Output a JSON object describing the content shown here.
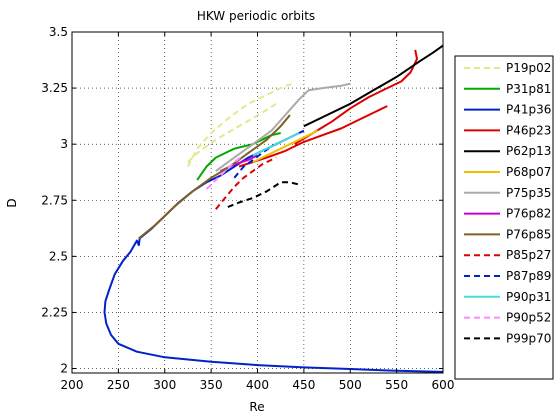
{
  "chart_data": {
    "type": "line",
    "title": "HKW periodic orbits",
    "xlabel": "Re",
    "ylabel": "D",
    "xlim": [
      200,
      600
    ],
    "ylim": [
      1.98,
      3.5
    ],
    "xticks": [
      200,
      250,
      300,
      350,
      400,
      450,
      500,
      550,
      600
    ],
    "yticks": [
      2,
      2.25,
      2.5,
      2.75,
      3,
      3.25,
      3.5
    ],
    "xtick_labels": [
      "200",
      "250",
      "300",
      "350",
      "400",
      "450",
      "500",
      "550",
      "600"
    ],
    "ytick_labels": [
      "2",
      "2.25",
      "2.5",
      "2.75",
      "3",
      "3.25",
      "3.5"
    ],
    "grid": true,
    "legend_position": "right, outside plot",
    "series": [
      {
        "name": "P19p02",
        "color": "#e6e68c",
        "dash": "dashed",
        "points": [
          [
            325,
            2.9
          ],
          [
            335,
            2.98
          ],
          [
            350,
            3.05
          ],
          [
            370,
            3.12
          ],
          [
            390,
            3.18
          ],
          [
            410,
            3.22
          ],
          [
            430,
            3.26
          ],
          [
            440,
            3.27
          ]
        ]
      },
      {
        "name": "P19p02",
        "color": "#e6e68c",
        "dash": "dashed",
        "points": [
          [
            325,
            2.92
          ],
          [
            335,
            2.96
          ],
          [
            355,
            3.02
          ],
          [
            380,
            3.08
          ],
          [
            405,
            3.14
          ],
          [
            420,
            3.18
          ]
        ]
      },
      {
        "name": "P31p81",
        "color": "#00aa00",
        "dash": "solid",
        "points": [
          [
            335,
            2.84
          ],
          [
            345,
            2.9
          ],
          [
            355,
            2.94
          ],
          [
            365,
            2.96
          ],
          [
            375,
            2.98
          ],
          [
            385,
            2.99
          ],
          [
            395,
            3.0
          ],
          [
            405,
            3.02
          ],
          [
            415,
            3.04
          ],
          [
            425,
            3.05
          ]
        ]
      },
      {
        "name": "P41p36",
        "color": "#0022cc",
        "dash": "solid",
        "points": [
          [
            600,
            1.985
          ],
          [
            550,
            1.99
          ],
          [
            500,
            1.998
          ],
          [
            450,
            2.005
          ],
          [
            400,
            2.015
          ],
          [
            350,
            2.03
          ],
          [
            300,
            2.05
          ],
          [
            270,
            2.075
          ],
          [
            250,
            2.11
          ],
          [
            242,
            2.15
          ],
          [
            237,
            2.2
          ],
          [
            235,
            2.25
          ],
          [
            236,
            2.3
          ],
          [
            240,
            2.35
          ],
          [
            246,
            2.42
          ],
          [
            255,
            2.48
          ],
          [
            263,
            2.52
          ],
          [
            270,
            2.57
          ],
          [
            272,
            2.55
          ],
          [
            273,
            2.58
          ],
          [
            285,
            2.62
          ],
          [
            300,
            2.68
          ],
          [
            315,
            2.74
          ],
          [
            330,
            2.79
          ],
          [
            345,
            2.83
          ],
          [
            360,
            2.86
          ],
          [
            375,
            2.9
          ],
          [
            390,
            2.94
          ],
          [
            405,
            2.97
          ],
          [
            420,
            3.0
          ],
          [
            435,
            3.03
          ],
          [
            450,
            3.06
          ]
        ]
      },
      {
        "name": "P46p23",
        "color": "#dd0000",
        "dash": "solid",
        "points": [
          [
            380,
            2.9
          ],
          [
            395,
            2.92
          ],
          [
            410,
            2.94
          ],
          [
            430,
            2.97
          ],
          [
            450,
            3.01
          ],
          [
            470,
            3.04
          ],
          [
            490,
            3.07
          ],
          [
            510,
            3.11
          ],
          [
            530,
            3.15
          ],
          [
            540,
            3.17
          ]
        ]
      },
      {
        "name": "P46p23",
        "color": "#dd0000",
        "dash": "solid",
        "points": [
          [
            440,
            3.0
          ],
          [
            460,
            3.05
          ],
          [
            480,
            3.1
          ],
          [
            500,
            3.16
          ],
          [
            520,
            3.21
          ],
          [
            540,
            3.25
          ],
          [
            555,
            3.28
          ],
          [
            565,
            3.32
          ],
          [
            572,
            3.38
          ],
          [
            570,
            3.42
          ]
        ]
      },
      {
        "name": "P62p13",
        "color": "#000000",
        "dash": "solid",
        "points": [
          [
            450,
            3.08
          ],
          [
            475,
            3.13
          ],
          [
            500,
            3.18
          ],
          [
            525,
            3.24
          ],
          [
            550,
            3.3
          ],
          [
            575,
            3.37
          ],
          [
            590,
            3.41
          ],
          [
            600,
            3.44
          ]
        ]
      },
      {
        "name": "P68p07",
        "color": "#f0c000",
        "dash": "solid",
        "points": [
          [
            395,
            2.92
          ],
          [
            410,
            2.95
          ],
          [
            425,
            2.98
          ],
          [
            440,
            3.01
          ],
          [
            455,
            3.04
          ],
          [
            465,
            3.06
          ]
        ]
      },
      {
        "name": "P75p35",
        "color": "#aaaaaa",
        "dash": "solid",
        "points": [
          [
            355,
            2.88
          ],
          [
            375,
            2.94
          ],
          [
            395,
            3.0
          ],
          [
            415,
            3.06
          ],
          [
            430,
            3.13
          ],
          [
            445,
            3.2
          ],
          [
            455,
            3.24
          ],
          [
            470,
            3.25
          ],
          [
            490,
            3.26
          ],
          [
            500,
            3.27
          ]
        ]
      },
      {
        "name": "P76p82",
        "color": "#cc00cc",
        "dash": "solid",
        "points": [
          [
            360,
            2.88
          ],
          [
            375,
            2.91
          ],
          [
            390,
            2.93
          ],
          [
            400,
            2.95
          ]
        ]
      },
      {
        "name": "P76p85",
        "color": "#806020",
        "dash": "solid",
        "points": [
          [
            272,
            2.58
          ],
          [
            290,
            2.64
          ],
          [
            310,
            2.72
          ],
          [
            330,
            2.79
          ],
          [
            350,
            2.85
          ],
          [
            370,
            2.9
          ],
          [
            390,
            2.96
          ],
          [
            410,
            3.02
          ],
          [
            425,
            3.08
          ],
          [
            435,
            3.13
          ]
        ]
      },
      {
        "name": "P85p27",
        "color": "#dd0000",
        "dash": "dashed",
        "points": [
          [
            355,
            2.71
          ],
          [
            365,
            2.76
          ],
          [
            375,
            2.81
          ],
          [
            385,
            2.85
          ],
          [
            395,
            2.88
          ],
          [
            405,
            2.91
          ],
          [
            420,
            2.94
          ]
        ]
      },
      {
        "name": "P87p89",
        "color": "#0022cc",
        "dash": "dashed",
        "points": [
          [
            375,
            2.85
          ],
          [
            385,
            2.9
          ],
          [
            395,
            2.93
          ],
          [
            405,
            2.96
          ],
          [
            415,
            2.99
          ],
          [
            425,
            3.01
          ]
        ]
      },
      {
        "name": "P90p31",
        "color": "#44dddd",
        "dash": "solid",
        "points": [
          [
            395,
            2.95
          ],
          [
            405,
            2.97
          ],
          [
            415,
            2.99
          ],
          [
            425,
            3.01
          ],
          [
            435,
            3.03
          ],
          [
            445,
            3.05
          ]
        ]
      },
      {
        "name": "P90p52",
        "color": "#ff88ff",
        "dash": "dashed",
        "points": [
          [
            345,
            2.8
          ],
          [
            355,
            2.84
          ],
          [
            365,
            2.88
          ],
          [
            375,
            2.92
          ],
          [
            385,
            2.95
          ]
        ]
      },
      {
        "name": "P99p70",
        "color": "#000000",
        "dash": "dashed",
        "points": [
          [
            368,
            2.72
          ],
          [
            380,
            2.74
          ],
          [
            395,
            2.76
          ],
          [
            410,
            2.79
          ],
          [
            425,
            2.83
          ],
          [
            435,
            2.83
          ],
          [
            445,
            2.82
          ]
        ]
      }
    ],
    "legend": [
      {
        "label": "P19p02",
        "color": "#e6e68c",
        "dash": "dashed"
      },
      {
        "label": "P31p81",
        "color": "#00aa00",
        "dash": "solid"
      },
      {
        "label": "P41p36",
        "color": "#0022cc",
        "dash": "solid"
      },
      {
        "label": "P46p23",
        "color": "#dd0000",
        "dash": "solid"
      },
      {
        "label": "P62p13",
        "color": "#000000",
        "dash": "solid"
      },
      {
        "label": "P68p07",
        "color": "#f0c000",
        "dash": "solid"
      },
      {
        "label": "P75p35",
        "color": "#aaaaaa",
        "dash": "solid"
      },
      {
        "label": "P76p82",
        "color": "#cc00cc",
        "dash": "solid"
      },
      {
        "label": "P76p85",
        "color": "#806020",
        "dash": "solid"
      },
      {
        "label": "P85p27",
        "color": "#dd0000",
        "dash": "dashed"
      },
      {
        "label": "P87p89",
        "color": "#0022cc",
        "dash": "dashed"
      },
      {
        "label": "P90p31",
        "color": "#44dddd",
        "dash": "solid"
      },
      {
        "label": "P90p52",
        "color": "#ff88ff",
        "dash": "dashed"
      },
      {
        "label": "P99p70",
        "color": "#000000",
        "dash": "dashed"
      }
    ]
  }
}
